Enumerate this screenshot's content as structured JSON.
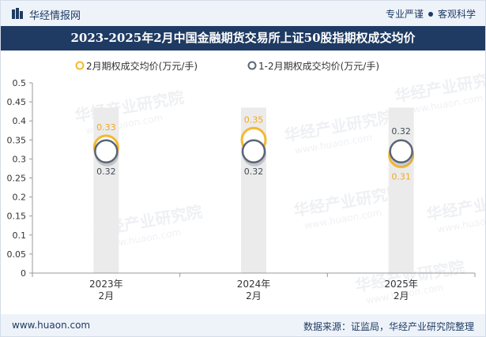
{
  "header": {
    "brand": "华经情报网",
    "tag_left": "专业严谨",
    "tag_right": "客观科学"
  },
  "colors": {
    "series1": "#f5b82e",
    "series2": "#5b6575",
    "title_bg": "#1f3b63",
    "column_bg": "#ebebeb"
  },
  "chart_data": {
    "type": "line",
    "title": "2023-2025年2月中国金融期货交易所上证50股指期权成交均价",
    "categories": [
      [
        "2023年",
        "2月"
      ],
      [
        "2024年",
        "2月"
      ],
      [
        "2025年",
        "2月"
      ]
    ],
    "series": [
      {
        "name": "2月期权成交均价(万元/手)",
        "values": [
          0.33,
          0.35,
          0.31
        ],
        "labels": [
          "0.33",
          "0.35",
          "0.31"
        ]
      },
      {
        "name": "1-2月期权成交均价(万元/手)",
        "values": [
          0.32,
          0.32,
          0.32
        ],
        "labels": [
          "0.32",
          "0.32",
          "0.32"
        ]
      }
    ],
    "ylim": [
      0,
      0.5
    ],
    "yticks": [
      "0",
      "0.05",
      "0.1",
      "0.15",
      "0.2",
      "0.25",
      "0.3",
      "0.35",
      "0.4",
      "0.45",
      "0.5"
    ],
    "xlabel": "",
    "ylabel": ""
  },
  "watermark": {
    "cn": "华经产业研究院",
    "en": "www.huaon.com"
  },
  "footer": {
    "site": "www.huaon.com",
    "source": "数据来源：证监局，华经产业研究院整理"
  }
}
